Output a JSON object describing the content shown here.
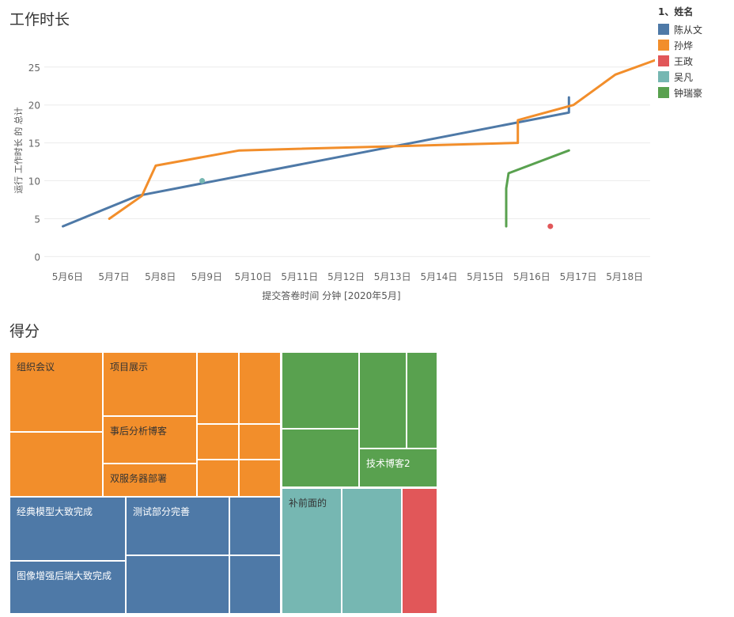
{
  "charts": {
    "line_title": "工作时长",
    "treemap_title": "得分"
  },
  "legend": {
    "title": "1、姓名",
    "items": [
      {
        "name": "陈从文",
        "color": "#4e79a7"
      },
      {
        "name": "孙烨",
        "color": "#f28e2b"
      },
      {
        "name": "王政",
        "color": "#e15759"
      },
      {
        "name": "吴凡",
        "color": "#76b7b2"
      },
      {
        "name": "钟瑞豪",
        "color": "#59a14f"
      }
    ]
  },
  "chart_data": [
    {
      "type": "line",
      "title": "工作时长",
      "xlabel": "提交答卷时间 分钟 [2020年5月]",
      "ylabel": "运行 工作时长 的 总计",
      "x_ticks": [
        "5月6日",
        "5月7日",
        "5月8日",
        "5月9日",
        "5月10日",
        "5月11日",
        "5月12日",
        "5月13日",
        "5月14日",
        "5月15日",
        "5月16日",
        "5月17日",
        "5月18日"
      ],
      "x_range": [
        5.5,
        18.55
      ],
      "y_ticks": [
        0,
        5,
        10,
        15,
        20,
        25
      ],
      "ylim": [
        -1,
        28
      ],
      "grid": true,
      "series": [
        {
          "name": "陈从文",
          "color": "#4e79a7",
          "x": [
            5.9,
            7.5,
            16.8,
            16.8
          ],
          "y": [
            4,
            8,
            19,
            21
          ]
        },
        {
          "name": "孙烨",
          "color": "#f28e2b",
          "x": [
            6.9,
            7.6,
            7.9,
            9.7,
            15.7,
            15.7,
            16.0,
            16.9,
            17.8,
            18.7
          ],
          "y": [
            5,
            8,
            12,
            14,
            15,
            18,
            18.5,
            20,
            24,
            26
          ]
        },
        {
          "name": "王政",
          "color": "#e15759",
          "x": [
            16.4
          ],
          "y": [
            4
          ]
        },
        {
          "name": "吴凡",
          "color": "#76b7b2",
          "x": [
            8.9
          ],
          "y": [
            10
          ]
        },
        {
          "name": "钟瑞豪",
          "color": "#59a14f",
          "x": [
            15.45,
            15.45,
            15.5,
            16.8
          ],
          "y": [
            4,
            9,
            11,
            14
          ]
        }
      ]
    },
    {
      "type": "treemap",
      "title": "得分",
      "groups": [
        {
          "name": "孙烨",
          "color": "#f28e2b",
          "cells": [
            {
              "label": "组织会议"
            },
            {
              "label": ""
            },
            {
              "label": "项目展示"
            },
            {
              "label": "事后分析博客"
            },
            {
              "label": "双服务器部署"
            },
            {
              "label": ""
            },
            {
              "label": ""
            },
            {
              "label": ""
            },
            {
              "label": ""
            },
            {
              "label": ""
            },
            {
              "label": ""
            }
          ]
        },
        {
          "name": "陈从文",
          "color": "#4e79a7",
          "cells": [
            {
              "label": "经典模型大致完成"
            },
            {
              "label": "图像增强后端大致完成"
            },
            {
              "label": "测试部分完善"
            },
            {
              "label": ""
            },
            {
              "label": ""
            },
            {
              "label": ""
            }
          ]
        },
        {
          "name": "钟瑞豪",
          "color": "#59a14f",
          "cells": [
            {
              "label": ""
            },
            {
              "label": ""
            },
            {
              "label": ""
            },
            {
              "label": ""
            },
            {
              "label": "技术博客2"
            }
          ]
        },
        {
          "name": "吴凡",
          "color": "#76b7b2",
          "cells": [
            {
              "label": "补前面的"
            },
            {
              "label": ""
            }
          ]
        },
        {
          "name": "王政",
          "color": "#e15759",
          "cells": [
            {
              "label": ""
            }
          ]
        }
      ]
    }
  ]
}
